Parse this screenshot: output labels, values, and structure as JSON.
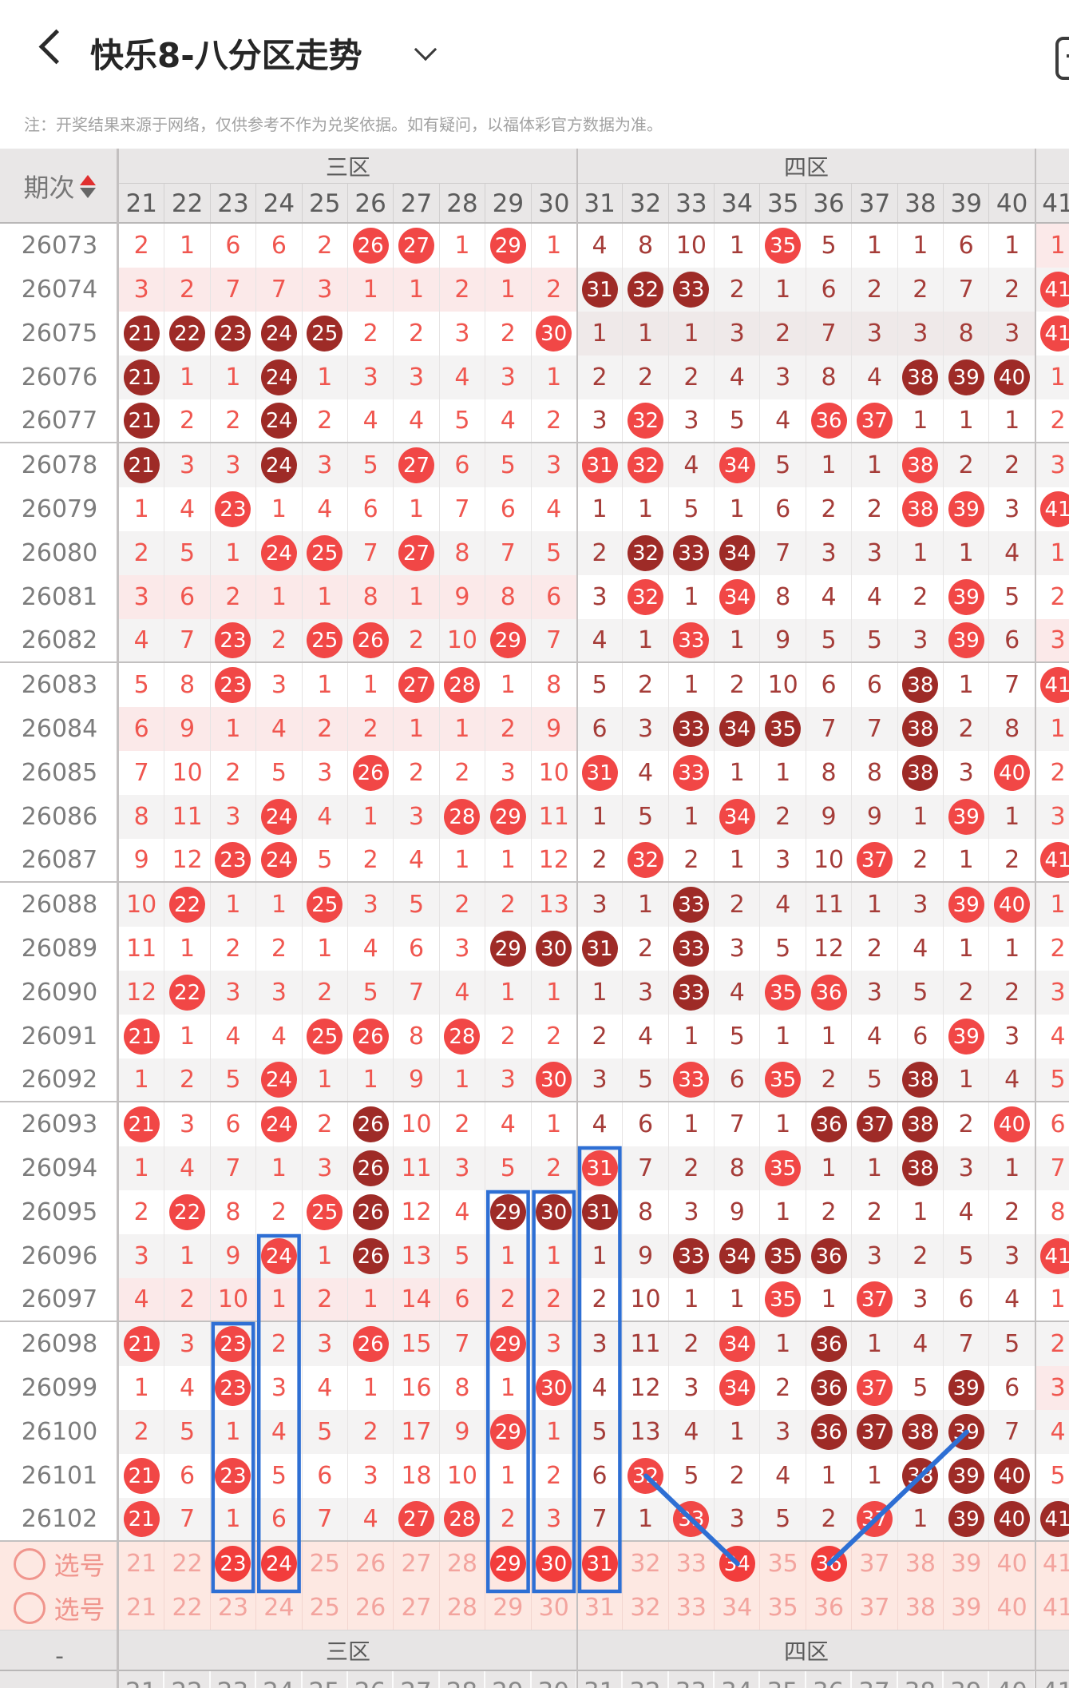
{
  "header": {
    "back_label": "back",
    "title": "快乐8-八分区走势",
    "dropdown_icon": "chevron-down",
    "share_icon": "note-square"
  },
  "note": "注：开奖结果来源于网络，仅供参考不作为兑奖依据。如有疑问，以福体彩官方数据为准。",
  "table": {
    "period_label": "期次",
    "sort_icon": "sort-up-down",
    "zones": [
      {
        "label": "三区",
        "columns": [
          21,
          30
        ]
      },
      {
        "label": "四区",
        "columns": [
          31,
          40
        ]
      },
      {
        "label": "",
        "columns": [
          41,
          41
        ]
      }
    ],
    "columns": [
      21,
      22,
      23,
      24,
      25,
      26,
      27,
      28,
      29,
      30,
      31,
      32,
      33,
      34,
      35,
      36,
      37,
      38,
      39,
      40,
      41
    ],
    "legend": {
      "B": "drawn-number-bright-red-circle",
      "D": "drawn-number-dark-red-circle",
      "plain": "omission-count"
    },
    "rows": [
      {
        "period": "26073",
        "cells": [
          "2",
          "1",
          "6",
          "6",
          "2",
          "26B",
          "27B",
          "1",
          "29B",
          "1",
          "4",
          "8",
          "10",
          "1",
          "35B",
          "5",
          "1",
          "1",
          "6",
          "1",
          "1"
        ]
      },
      {
        "period": "26074",
        "cells": [
          "3",
          "2",
          "7",
          "7",
          "3",
          "1",
          "1",
          "2",
          "1",
          "2",
          "31D",
          "32D",
          "33D",
          "2",
          "1",
          "6",
          "2",
          "2",
          "7",
          "2",
          "41B"
        ]
      },
      {
        "period": "26075",
        "cells": [
          "21D",
          "22D",
          "23D",
          "24D",
          "25D",
          "2",
          "2",
          "3",
          "2",
          "30B",
          "1",
          "1",
          "1",
          "3",
          "2",
          "7",
          "3",
          "3",
          "8",
          "3",
          "41B"
        ]
      },
      {
        "period": "26076",
        "cells": [
          "21D",
          "1",
          "1",
          "24D",
          "1",
          "3",
          "3",
          "4",
          "3",
          "1",
          "2",
          "2",
          "2",
          "4",
          "3",
          "8",
          "4",
          "38D",
          "39D",
          "40D",
          "1"
        ]
      },
      {
        "period": "26077",
        "cells": [
          "21D",
          "2",
          "2",
          "24D",
          "2",
          "4",
          "4",
          "5",
          "4",
          "2",
          "3",
          "32B",
          "3",
          "5",
          "4",
          "36B",
          "37B",
          "1",
          "1",
          "1",
          "2"
        ]
      },
      {
        "period": "26078",
        "cells": [
          "21D",
          "3",
          "3",
          "24D",
          "3",
          "5",
          "27B",
          "6",
          "5",
          "3",
          "31B",
          "32B",
          "4",
          "34B",
          "5",
          "1",
          "1",
          "38B",
          "2",
          "2",
          "3"
        ]
      },
      {
        "period": "26079",
        "cells": [
          "1",
          "4",
          "23B",
          "1",
          "4",
          "6",
          "1",
          "7",
          "6",
          "4",
          "1",
          "1",
          "5",
          "1",
          "6",
          "2",
          "2",
          "38B",
          "39B",
          "3",
          "41B"
        ]
      },
      {
        "period": "26080",
        "cells": [
          "2",
          "5",
          "1",
          "24B",
          "25B",
          "7",
          "27B",
          "8",
          "7",
          "5",
          "2",
          "32D",
          "33D",
          "34D",
          "7",
          "3",
          "3",
          "1",
          "1",
          "4",
          "1"
        ]
      },
      {
        "period": "26081",
        "cells": [
          "3",
          "6",
          "2",
          "1",
          "1",
          "8",
          "1",
          "9",
          "8",
          "6",
          "3",
          "32B",
          "1",
          "34B",
          "8",
          "4",
          "4",
          "2",
          "39B",
          "5",
          "2"
        ]
      },
      {
        "period": "26082",
        "cells": [
          "4",
          "7",
          "23B",
          "2",
          "25B",
          "26B",
          "2",
          "10",
          "29B",
          "7",
          "4",
          "1",
          "33B",
          "1",
          "9",
          "5",
          "5",
          "3",
          "39B",
          "6",
          "3"
        ]
      },
      {
        "period": "26083",
        "cells": [
          "5",
          "8",
          "23B",
          "3",
          "1",
          "1",
          "27B",
          "28B",
          "1",
          "8",
          "5",
          "2",
          "1",
          "2",
          "10",
          "6",
          "6",
          "38D",
          "1",
          "7",
          "41B"
        ]
      },
      {
        "period": "26084",
        "cells": [
          "6",
          "9",
          "1",
          "4",
          "2",
          "2",
          "1",
          "1",
          "2",
          "9",
          "6",
          "3",
          "33D",
          "34D",
          "35D",
          "7",
          "7",
          "38D",
          "2",
          "8",
          "1"
        ]
      },
      {
        "period": "26085",
        "cells": [
          "7",
          "10",
          "2",
          "5",
          "3",
          "26B",
          "2",
          "2",
          "3",
          "10",
          "31B",
          "4",
          "33B",
          "1",
          "1",
          "8",
          "8",
          "38D",
          "3",
          "40B",
          "2"
        ]
      },
      {
        "period": "26086",
        "cells": [
          "8",
          "11",
          "3",
          "24B",
          "4",
          "1",
          "3",
          "28B",
          "29B",
          "11",
          "1",
          "5",
          "1",
          "34B",
          "2",
          "9",
          "9",
          "1",
          "39B",
          "1",
          "3"
        ]
      },
      {
        "period": "26087",
        "cells": [
          "9",
          "12",
          "23B",
          "24B",
          "5",
          "2",
          "4",
          "1",
          "1",
          "12",
          "2",
          "32B",
          "2",
          "1",
          "3",
          "10",
          "37B",
          "2",
          "1",
          "2",
          "41B"
        ]
      },
      {
        "period": "26088",
        "cells": [
          "10",
          "22B",
          "1",
          "1",
          "25B",
          "3",
          "5",
          "2",
          "2",
          "13",
          "3",
          "1",
          "33D",
          "2",
          "4",
          "11",
          "1",
          "3",
          "39B",
          "40B",
          "1"
        ]
      },
      {
        "period": "26089",
        "cells": [
          "11",
          "1",
          "2",
          "2",
          "1",
          "4",
          "6",
          "3",
          "29D",
          "30D",
          "31D",
          "2",
          "33D",
          "3",
          "5",
          "12",
          "2",
          "4",
          "1",
          "1",
          "2"
        ]
      },
      {
        "period": "26090",
        "cells": [
          "12",
          "22B",
          "3",
          "3",
          "2",
          "5",
          "7",
          "4",
          "1",
          "1",
          "1",
          "3",
          "33D",
          "4",
          "35B",
          "36B",
          "3",
          "5",
          "2",
          "2",
          "3"
        ]
      },
      {
        "period": "26091",
        "cells": [
          "21B",
          "1",
          "4",
          "4",
          "25B",
          "26B",
          "8",
          "28B",
          "2",
          "2",
          "2",
          "4",
          "1",
          "5",
          "1",
          "1",
          "4",
          "6",
          "39B",
          "3",
          "4"
        ]
      },
      {
        "period": "26092",
        "cells": [
          "1",
          "2",
          "5",
          "24B",
          "1",
          "1",
          "9",
          "1",
          "3",
          "30B",
          "3",
          "5",
          "33B",
          "6",
          "35B",
          "2",
          "5",
          "38D",
          "1",
          "4",
          "5"
        ]
      },
      {
        "period": "26093",
        "cells": [
          "21B",
          "3",
          "6",
          "24B",
          "2",
          "26D",
          "10",
          "2",
          "4",
          "1",
          "4",
          "6",
          "1",
          "7",
          "1",
          "36D",
          "37D",
          "38D",
          "2",
          "40B",
          "6"
        ]
      },
      {
        "period": "26094",
        "cells": [
          "1",
          "4",
          "7",
          "1",
          "3",
          "26D",
          "11",
          "3",
          "5",
          "2",
          "31B",
          "7",
          "2",
          "8",
          "35B",
          "1",
          "1",
          "38D",
          "3",
          "1",
          "7"
        ]
      },
      {
        "period": "26095",
        "cells": [
          "2",
          "22B",
          "8",
          "2",
          "25B",
          "26D",
          "12",
          "4",
          "29D",
          "30D",
          "31D",
          "8",
          "3",
          "9",
          "1",
          "2",
          "2",
          "1",
          "4",
          "2",
          "8"
        ]
      },
      {
        "period": "26096",
        "cells": [
          "3",
          "1",
          "9",
          "24B",
          "1",
          "26D",
          "13",
          "5",
          "1",
          "1",
          "1",
          "9",
          "33D",
          "34D",
          "35D",
          "36D",
          "3",
          "2",
          "5",
          "3",
          "41B"
        ]
      },
      {
        "period": "26097",
        "cells": [
          "4",
          "2",
          "10",
          "1",
          "2",
          "1",
          "14",
          "6",
          "2",
          "2",
          "2",
          "10",
          "1",
          "1",
          "35B",
          "1",
          "37B",
          "3",
          "6",
          "4",
          "1"
        ]
      },
      {
        "period": "26098",
        "cells": [
          "21B",
          "3",
          "23B",
          "2",
          "3",
          "26B",
          "15",
          "7",
          "29B",
          "3",
          "3",
          "11",
          "2",
          "34B",
          "1",
          "36D",
          "1",
          "4",
          "7",
          "5",
          "2"
        ]
      },
      {
        "period": "26099",
        "cells": [
          "1",
          "4",
          "23B",
          "3",
          "4",
          "1",
          "16",
          "8",
          "1",
          "30B",
          "4",
          "12",
          "3",
          "34B",
          "2",
          "36D",
          "37B",
          "5",
          "39D",
          "6",
          "3"
        ]
      },
      {
        "period": "26100",
        "cells": [
          "2",
          "5",
          "1",
          "4",
          "5",
          "2",
          "17",
          "9",
          "29B",
          "1",
          "5",
          "13",
          "4",
          "1",
          "3",
          "36D",
          "37D",
          "38D",
          "39D",
          "7",
          "4"
        ]
      },
      {
        "period": "26101",
        "cells": [
          "21B",
          "6",
          "23B",
          "5",
          "6",
          "3",
          "18",
          "10",
          "1",
          "2",
          "6",
          "32B",
          "5",
          "2",
          "4",
          "1",
          "1",
          "38D",
          "39D",
          "40D",
          "5"
        ]
      },
      {
        "period": "26102",
        "cells": [
          "21B",
          "7",
          "1",
          "6",
          "7",
          "4",
          "27B",
          "28B",
          "2",
          "3",
          "7",
          "1",
          "33B",
          "3",
          "5",
          "2",
          "37B",
          "1",
          "39D",
          "40D",
          "41D"
        ]
      }
    ],
    "group_separator_after_periods": [
      "26077",
      "26082",
      "26087",
      "26092",
      "26097",
      "26102"
    ],
    "empty_zone_tint_rows": {
      "zone1_cols21_30": [
        "26074",
        "26081",
        "26084",
        "26097"
      ],
      "zone2_cols31_40": [
        "26075"
      ],
      "zone3_col41": [
        "26073",
        "26082",
        "26099"
      ]
    }
  },
  "selection": {
    "rows": [
      {
        "label": "选号",
        "selected": [
          23,
          24,
          29,
          30,
          31,
          34,
          36
        ]
      },
      {
        "label": "选号",
        "selected": []
      }
    ]
  },
  "footer": {
    "zone_labels": [
      "三区",
      "四区"
    ],
    "dash": "-",
    "partial_columns": [
      21,
      22,
      23,
      24,
      25,
      26,
      27,
      28,
      29,
      30,
      31,
      32,
      33,
      34,
      35,
      36,
      37,
      38,
      39,
      40,
      41
    ]
  },
  "annotations": {
    "color": "#2e6fd4",
    "boxes": [
      {
        "column": 23,
        "from_period": "26098"
      },
      {
        "column": 24,
        "from_period": "26096"
      },
      {
        "column": 29,
        "from_period": "26095"
      },
      {
        "column": 30,
        "from_period": "26095"
      },
      {
        "column": 31,
        "from_period": "26094"
      }
    ],
    "lines": [
      {
        "from": {
          "period": "26101",
          "column": 32
        },
        "to": {
          "selection_row": 0,
          "column": 34
        }
      },
      {
        "from": {
          "selection_row": 0,
          "column": 36
        },
        "to": {
          "period": "26100",
          "column": 39
        }
      }
    ]
  },
  "colors": {
    "bright_circle": "#f14746",
    "dark_circle": "#9e2b27",
    "bright_text": "#f0564f",
    "dark_text": "#a53c38",
    "selection_bg": "#fde8e2",
    "selection_circle": "#f23d3c",
    "annotation_blue": "#2e6fd4",
    "header_bg": "#e9e7e7",
    "tint_pink": "#fbe9e9",
    "tint_gray": "#efe9e9",
    "alt_row": "#f4f3f3"
  }
}
